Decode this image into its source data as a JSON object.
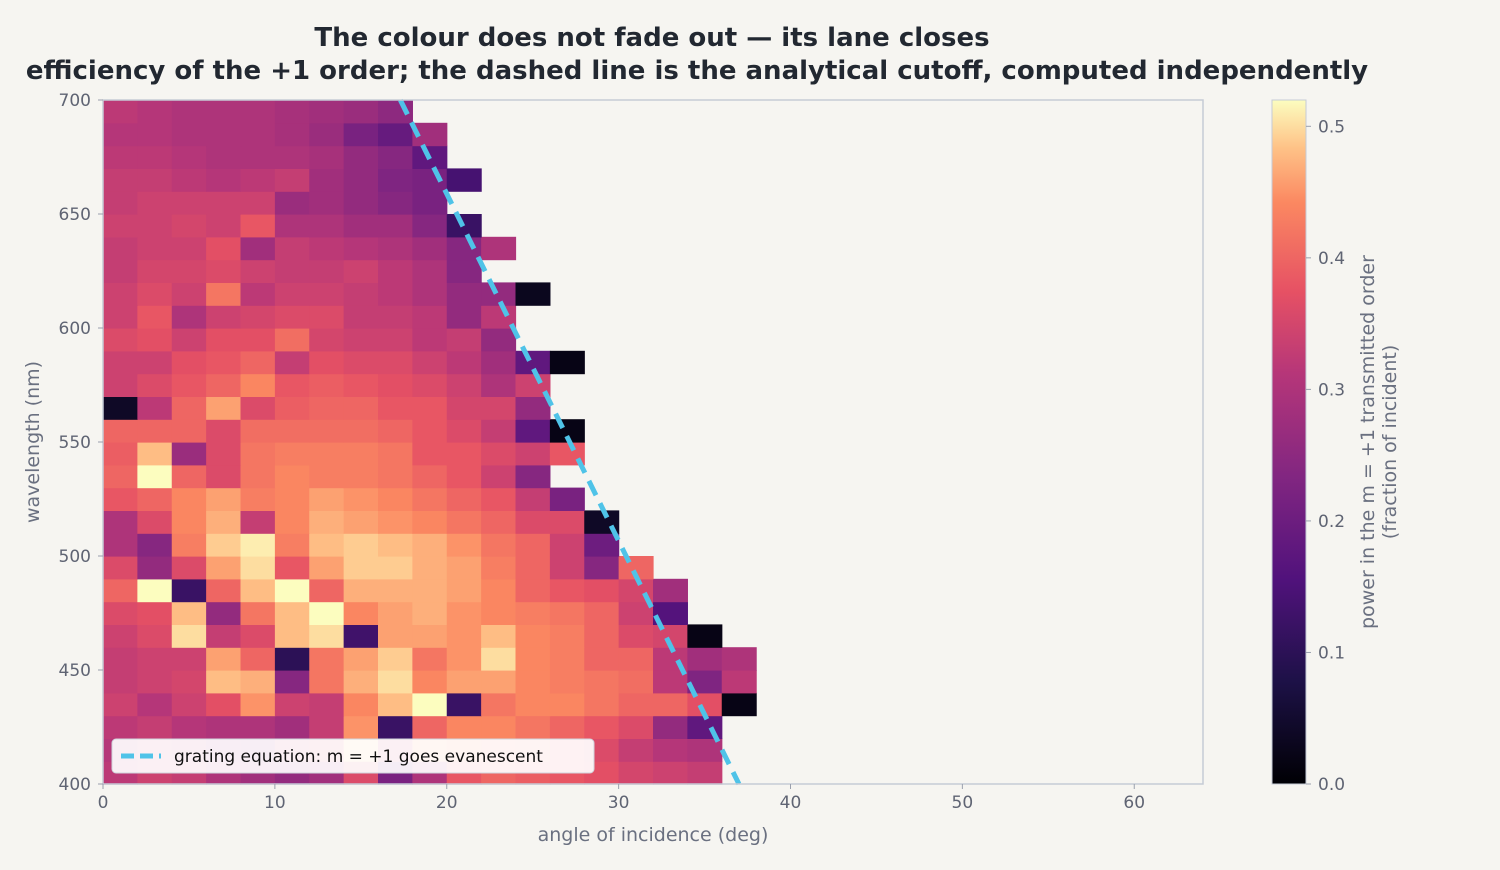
{
  "chart_data": {
    "type": "heatmap",
    "title": "The colour does not fade out — its lane closes",
    "subtitle": "efficiency of the +1 order; the dashed line is the analytical cutoff, computed independently",
    "xlabel": "angle of incidence  (deg)",
    "ylabel": "wavelength  (nm)",
    "xlim": [
      0,
      64
    ],
    "ylim": [
      400,
      700
    ],
    "xticks": [
      "0",
      "10",
      "20",
      "30",
      "40",
      "50",
      "60"
    ],
    "yticks": [
      "400",
      "450",
      "500",
      "550",
      "600",
      "650",
      "700"
    ],
    "colormap": "magma",
    "colorbar": {
      "label_line1": "power in the m = +1 transmitted order",
      "label_line2": "(fraction of incident)",
      "range": [
        0,
        0.52
      ],
      "ticks": [
        "0.0",
        "0.1",
        "0.2",
        "0.3",
        "0.4",
        "0.5"
      ]
    },
    "cutoff_line": {
      "name": "grating equation: m = +1 goes evanescent",
      "color": "#4fc3e8",
      "points": [
        [
          17.3,
          700
        ],
        [
          37.0,
          400
        ]
      ]
    },
    "legend_position": "lower-left",
    "grid": false,
    "cells": {
      "x_edges_start": 0,
      "x_step_deg": 2,
      "y_edges_start": 400,
      "y_step_nm": 10,
      "rows_low_to_high": [
        [
          0.32,
          0.34,
          0.33,
          0.3,
          0.28,
          0.26,
          0.28,
          0.36,
          0.22,
          0.3,
          0.38,
          0.4,
          0.39,
          0.38,
          0.37,
          0.35,
          0.34,
          0.33
        ],
        [
          0.31,
          0.33,
          0.32,
          0.28,
          0.27,
          0.33,
          0.36,
          0.48,
          0.34,
          0.45,
          0.44,
          0.42,
          0.41,
          0.39,
          0.36,
          0.33,
          0.31,
          0.3
        ],
        [
          0.32,
          0.33,
          0.31,
          0.3,
          0.3,
          0.28,
          0.33,
          0.45,
          0.12,
          0.4,
          0.44,
          0.44,
          0.42,
          0.4,
          0.38,
          0.36,
          0.26,
          0.18
        ],
        [
          0.34,
          0.31,
          0.34,
          0.37,
          0.45,
          0.34,
          0.33,
          0.44,
          0.48,
          0.52,
          0.12,
          0.42,
          0.44,
          0.44,
          0.42,
          0.4,
          0.4,
          0.37,
          0.02
        ],
        [
          0.33,
          0.34,
          0.35,
          0.48,
          0.47,
          0.24,
          0.42,
          0.47,
          0.5,
          0.44,
          0.46,
          0.46,
          0.44,
          0.43,
          0.42,
          0.41,
          0.32,
          0.23,
          0.32
        ],
        [
          0.33,
          0.34,
          0.34,
          0.46,
          0.4,
          0.1,
          0.42,
          0.46,
          0.49,
          0.42,
          0.45,
          0.5,
          0.44,
          0.43,
          0.4,
          0.4,
          0.32,
          0.28,
          0.3
        ],
        [
          0.34,
          0.36,
          0.5,
          0.33,
          0.36,
          0.48,
          0.5,
          0.13,
          0.46,
          0.46,
          0.45,
          0.48,
          0.44,
          0.43,
          0.4,
          0.36,
          0.35,
          0.02
        ],
        [
          0.36,
          0.37,
          0.48,
          0.26,
          0.42,
          0.48,
          0.52,
          0.44,
          0.46,
          0.47,
          0.45,
          0.44,
          0.43,
          0.42,
          0.4,
          0.34,
          0.16
        ],
        [
          0.4,
          0.52,
          0.12,
          0.4,
          0.48,
          0.52,
          0.4,
          0.47,
          0.47,
          0.47,
          0.46,
          0.44,
          0.4,
          0.38,
          0.37,
          0.35,
          0.28
        ],
        [
          0.36,
          0.26,
          0.36,
          0.46,
          0.5,
          0.38,
          0.46,
          0.49,
          0.49,
          0.47,
          0.46,
          0.43,
          0.4,
          0.34,
          0.24,
          0.4
        ],
        [
          0.3,
          0.24,
          0.43,
          0.49,
          0.51,
          0.43,
          0.48,
          0.49,
          0.48,
          0.47,
          0.45,
          0.42,
          0.4,
          0.34,
          0.2
        ],
        [
          0.3,
          0.36,
          0.44,
          0.47,
          0.33,
          0.44,
          0.47,
          0.46,
          0.45,
          0.44,
          0.42,
          0.4,
          0.36,
          0.36,
          0.04
        ],
        [
          0.38,
          0.4,
          0.44,
          0.46,
          0.43,
          0.44,
          0.46,
          0.45,
          0.44,
          0.42,
          0.4,
          0.38,
          0.33,
          0.22
        ],
        [
          0.4,
          0.52,
          0.4,
          0.36,
          0.42,
          0.44,
          0.43,
          0.43,
          0.42,
          0.4,
          0.38,
          0.34,
          0.24
        ],
        [
          0.39,
          0.48,
          0.27,
          0.36,
          0.42,
          0.43,
          0.43,
          0.43,
          0.42,
          0.38,
          0.38,
          0.36,
          0.34,
          0.38
        ],
        [
          0.4,
          0.4,
          0.4,
          0.36,
          0.41,
          0.41,
          0.41,
          0.41,
          0.4,
          0.38,
          0.36,
          0.33,
          0.18,
          0.02
        ],
        [
          0.04,
          0.32,
          0.4,
          0.46,
          0.36,
          0.39,
          0.4,
          0.4,
          0.38,
          0.38,
          0.35,
          0.35,
          0.26
        ],
        [
          0.34,
          0.36,
          0.38,
          0.4,
          0.44,
          0.38,
          0.39,
          0.38,
          0.37,
          0.36,
          0.34,
          0.3,
          0.34
        ],
        [
          0.34,
          0.34,
          0.37,
          0.38,
          0.4,
          0.33,
          0.37,
          0.36,
          0.36,
          0.34,
          0.32,
          0.28,
          0.18,
          0.02
        ],
        [
          0.36,
          0.37,
          0.34,
          0.37,
          0.37,
          0.41,
          0.35,
          0.34,
          0.34,
          0.32,
          0.33,
          0.26
        ],
        [
          0.34,
          0.38,
          0.3,
          0.34,
          0.35,
          0.36,
          0.36,
          0.33,
          0.33,
          0.32,
          0.26,
          0.32
        ],
        [
          0.34,
          0.36,
          0.34,
          0.42,
          0.32,
          0.34,
          0.34,
          0.33,
          0.32,
          0.3,
          0.26,
          0.26,
          0.03
        ],
        [
          0.33,
          0.35,
          0.35,
          0.36,
          0.34,
          0.33,
          0.33,
          0.34,
          0.32,
          0.3,
          0.24
        ],
        [
          0.33,
          0.34,
          0.34,
          0.37,
          0.28,
          0.33,
          0.32,
          0.31,
          0.3,
          0.28,
          0.24,
          0.3
        ],
        [
          0.34,
          0.34,
          0.35,
          0.34,
          0.38,
          0.3,
          0.3,
          0.28,
          0.28,
          0.24,
          0.12
        ],
        [
          0.33,
          0.34,
          0.34,
          0.34,
          0.34,
          0.27,
          0.28,
          0.26,
          0.24,
          0.22
        ],
        [
          0.33,
          0.33,
          0.32,
          0.31,
          0.32,
          0.33,
          0.28,
          0.26,
          0.23,
          0.22,
          0.14
        ],
        [
          0.32,
          0.32,
          0.31,
          0.3,
          0.3,
          0.3,
          0.29,
          0.26,
          0.24,
          0.18
        ],
        [
          0.31,
          0.31,
          0.3,
          0.3,
          0.3,
          0.29,
          0.27,
          0.22,
          0.19,
          0.28
        ],
        [
          0.32,
          0.31,
          0.3,
          0.3,
          0.3,
          0.29,
          0.28,
          0.27,
          0.25
        ]
      ]
    }
  }
}
